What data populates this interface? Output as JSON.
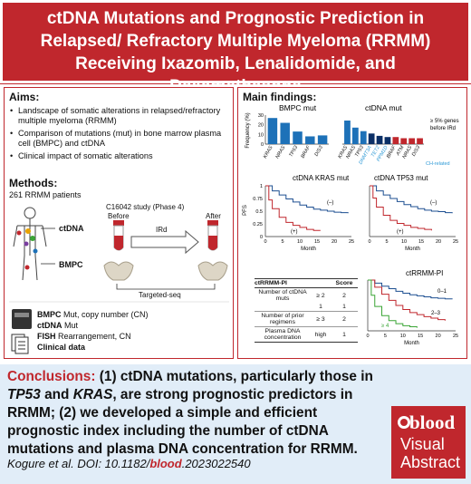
{
  "title": "ctDNA Mutations and Prognostic Prediction in Relapsed/ Refractory Multiple Myeloma (RRMM) Receiving Ixazomib, Lenalidomide, and Dexamethasone",
  "aims": {
    "heading": "Aims:",
    "items": [
      "Landscape of somatic alterations in relapsed/refractory multiple myeloma (RRMM)",
      "Comparison of mutations (mut) in bone marrow plasma cell (BMPC) and ctDNA",
      "Clinical impact of somatic alterations"
    ]
  },
  "methods": {
    "heading": "Methods:",
    "patients": "261 RRMM patients",
    "study": "C16042 study (Phase 4)",
    "before": "Before",
    "after": "After",
    "ctdna": "ctDNA",
    "bmpc": "BMPC",
    "treatment": "IRd",
    "seq": "Targeted-seq",
    "legend": [
      {
        "name": "BMPC",
        "desc": "Mut, copy number (CN)"
      },
      {
        "name": "ctDNA",
        "desc": "Mut"
      },
      {
        "name": "FISH",
        "desc": "Rearrangement, CN"
      },
      {
        "name": "Clinical data",
        "desc": ""
      }
    ]
  },
  "findings": {
    "heading": "Main findings:",
    "ylabel": "Frequency (%)",
    "y_ticks": [
      "30",
      "20",
      "10",
      "0"
    ],
    "note": "≥ 5% genes before IRd",
    "ch_related": "CH-related",
    "bmpc_title": "BMPC mut",
    "ctdna_title": "ctDNA mut",
    "km_kras_title": "ctDNA KRAS mut",
    "km_tp53_title": "ctDNA TP53 mut",
    "pfs": "PFS",
    "month": "Month",
    "km_y_ticks": [
      "1",
      "0.75",
      "0.5",
      "0.25",
      "0"
    ],
    "km_x_ticks": [
      "0",
      "5",
      "10",
      "15",
      "20",
      "25"
    ],
    "neg": "(–)",
    "pos": "(+)",
    "pi_title": "ctRRMM-PI",
    "groups": [
      "0–1",
      "2–3",
      "≥ 4"
    ],
    "table": {
      "headers": [
        "ctRRMM-PI",
        "",
        "Score"
      ],
      "rows": [
        [
          "Number of ctDNA muts",
          "≥ 2",
          "2"
        ],
        [
          "",
          "1",
          "1"
        ],
        [
          "Number of prior regimens",
          "≥ 3",
          "2"
        ],
        [
          "Plasma DNA concentration",
          "high",
          "1"
        ]
      ]
    }
  },
  "conclusions": {
    "label": "Conclusions:",
    "p1": "(1)",
    "t1": "ctDNA mutations, particularly those in",
    "g1": "TP53",
    "and": "and",
    "g2": "KRAS",
    "t2": ", are strong prognostic predictors in RRMM;",
    "p2": "(2)",
    "t3": "we developed a simple and efficient prognostic index including the number of ctDNA mutations and plasma DNA concentration for RRMM."
  },
  "citation": {
    "authors": "Kogure et al. DOI: 10.1182/",
    "word": "blood",
    "rest": ".2023022540"
  },
  "logo": {
    "brand": "blood",
    "line1": "Visual",
    "line2": "Abstract"
  },
  "chart_data": [
    {
      "type": "bar",
      "title": "BMPC mut",
      "ylabel": "Frequency (%)",
      "ylim": [
        0,
        30
      ],
      "categories": [
        "KRAS",
        "NRAS",
        "TP53",
        "BRAF",
        "DIS3"
      ],
      "values": [
        27,
        22,
        13,
        8,
        9
      ],
      "color": "#1d71b8"
    },
    {
      "type": "bar",
      "title": "ctDNA mut",
      "categories": [
        "KRAS",
        "NRAS",
        "TP53",
        "DNMT3A",
        "TET2",
        "PPM1D",
        "BRAF",
        "ATM",
        "NRAS",
        "DIS3"
      ],
      "values": [
        20,
        14,
        11,
        9,
        7,
        6,
        6,
        5,
        5,
        5
      ],
      "ch_related": [
        "DNMT3A",
        "TET2",
        "PPM1D"
      ]
    },
    {
      "type": "line",
      "title": "ctDNA KRAS mut",
      "ylabel": "PFS",
      "xlabel": "Month",
      "ylim": [
        0,
        1
      ],
      "xlim": [
        0,
        25
      ],
      "series": [
        {
          "name": "(–)",
          "x": [
            0,
            2,
            4,
            6,
            8,
            10,
            12,
            14,
            16,
            18,
            20,
            22,
            24
          ],
          "y": [
            1,
            0.9,
            0.82,
            0.74,
            0.68,
            0.62,
            0.58,
            0.54,
            0.52,
            0.5,
            0.48,
            0.47,
            0.46
          ]
        },
        {
          "name": "(+)",
          "x": [
            0,
            1,
            2,
            4,
            6,
            8,
            10,
            12,
            14,
            16
          ],
          "y": [
            1,
            0.72,
            0.55,
            0.38,
            0.28,
            0.22,
            0.18,
            0.14,
            0.12,
            0.12
          ]
        }
      ]
    },
    {
      "type": "line",
      "title": "ctDNA TP53 mut",
      "ylabel": "PFS",
      "xlabel": "Month",
      "ylim": [
        0,
        1
      ],
      "xlim": [
        0,
        25
      ],
      "series": [
        {
          "name": "(–)",
          "x": [
            0,
            2,
            4,
            6,
            8,
            10,
            12,
            14,
            16,
            18,
            20,
            22,
            24
          ],
          "y": [
            1,
            0.9,
            0.82,
            0.75,
            0.69,
            0.63,
            0.59,
            0.55,
            0.52,
            0.5,
            0.49,
            0.47,
            0.46
          ]
        },
        {
          "name": "(+)",
          "x": [
            0,
            1,
            2,
            4,
            6,
            8,
            10,
            12,
            14,
            16,
            18
          ],
          "y": [
            1,
            0.76,
            0.58,
            0.42,
            0.32,
            0.26,
            0.22,
            0.18,
            0.16,
            0.14,
            0.12
          ]
        }
      ]
    },
    {
      "type": "line",
      "title": "ctRRMM-PI",
      "xlabel": "Month",
      "ylim": [
        0,
        1
      ],
      "xlim": [
        0,
        25
      ],
      "series": [
        {
          "name": "0–1",
          "x": [
            0,
            2,
            4,
            6,
            8,
            10,
            12,
            14,
            16,
            18,
            20,
            22,
            24
          ],
          "y": [
            1,
            0.94,
            0.88,
            0.83,
            0.78,
            0.74,
            0.71,
            0.69,
            0.67,
            0.65,
            0.64,
            0.63,
            0.62
          ],
          "color": "#1d4f91"
        },
        {
          "name": "2–3",
          "x": [
            0,
            2,
            4,
            6,
            8,
            10,
            12,
            14,
            16,
            18,
            20,
            22
          ],
          "y": [
            1,
            0.86,
            0.72,
            0.6,
            0.5,
            0.42,
            0.36,
            0.32,
            0.28,
            0.25,
            0.22,
            0.2
          ],
          "color": "#c0272d"
        },
        {
          "name": "≥ 4",
          "x": [
            0,
            1,
            2,
            4,
            6,
            8,
            10,
            12,
            14
          ],
          "y": [
            1,
            0.7,
            0.48,
            0.3,
            0.2,
            0.14,
            0.1,
            0.08,
            0.06
          ],
          "color": "#3aa535"
        }
      ]
    }
  ]
}
